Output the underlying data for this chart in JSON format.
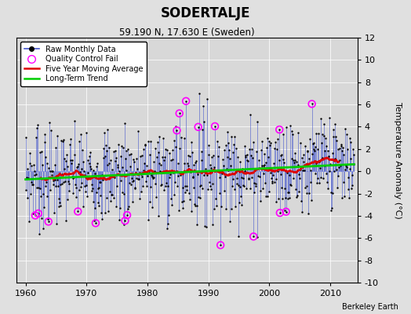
{
  "title": "SODERTALJE",
  "subtitle": "59.190 N, 17.630 E (Sweden)",
  "ylabel": "Temperature Anomaly (°C)",
  "xlabel_vals": [
    1960,
    1970,
    1980,
    1990,
    2000,
    2010
  ],
  "ylim": [
    -10,
    12
  ],
  "xlim": [
    1958.5,
    2014.5
  ],
  "yticks": [
    -10,
    -8,
    -6,
    -4,
    -2,
    0,
    2,
    4,
    6,
    8,
    10,
    12
  ],
  "bg_color": "#e0e0e0",
  "plot_bg_color": "#d8d8d8",
  "credit": "Berkeley Earth",
  "line_color": "#4455cc",
  "dot_color": "#000000",
  "qc_color": "#ff00ff",
  "ma_color": "#dd0000",
  "trend_color": "#00cc00",
  "seed": 7
}
